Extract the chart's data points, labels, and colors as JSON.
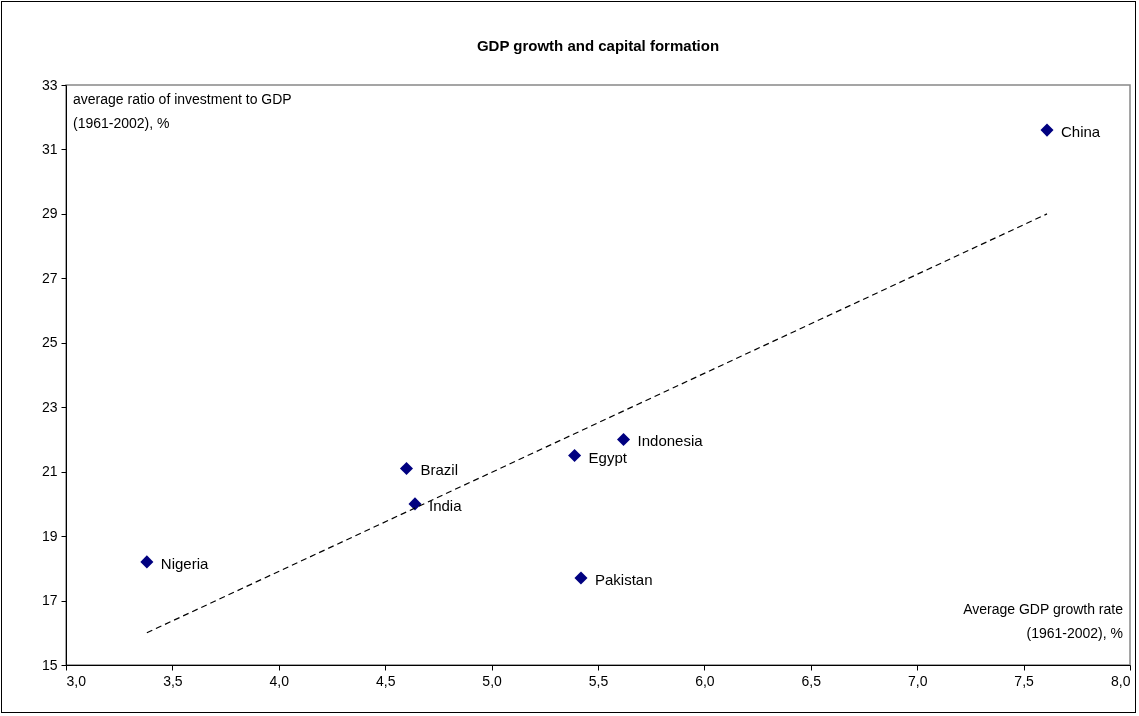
{
  "chart_data": {
    "type": "scatter",
    "title": "GDP growth and capital formation",
    "xlabel": "Average GDP growth rate\n(1961-2002), %",
    "ylabel": "average ratio of investment to GDP\n(1961-2002), %",
    "xlim": [
      3,
      8
    ],
    "xticks": [
      {
        "value": 3,
        "label": "3,0"
      },
      {
        "value": 3.5,
        "label": "3,5"
      },
      {
        "value": 4,
        "label": "4,0"
      },
      {
        "value": 4.5,
        "label": "4,5"
      },
      {
        "value": 5,
        "label": "5,0"
      },
      {
        "value": 5.5,
        "label": "5,5"
      },
      {
        "value": 6,
        "label": "6,0"
      },
      {
        "value": 6.5,
        "label": "6,5"
      },
      {
        "value": 7,
        "label": "7,0"
      },
      {
        "value": 7.5,
        "label": "7,5"
      },
      {
        "value": 8,
        "label": "8,0"
      }
    ],
    "ylim": [
      15,
      33
    ],
    "yticks": [
      15,
      17,
      19,
      21,
      23,
      25,
      27,
      29,
      31,
      33
    ],
    "grid": false,
    "series": [
      {
        "color": "#000080",
        "marker": "diamond",
        "x": [
          3.38,
          4.6,
          4.64,
          5.39,
          5.42,
          5.62,
          7.61
        ],
        "values": [
          18.2,
          21.1,
          20.0,
          21.5,
          17.7,
          22.0,
          31.6
        ]
      },
      {
        "type": "line",
        "color": "#000000",
        "line_style": "dashed",
        "marker": "none",
        "x": [
          3.38,
          7.61
        ],
        "values": [
          16.0,
          29.0
        ]
      }
    ],
    "annotations": [
      {
        "text": "Nigeria",
        "x": 3.38,
        "y": 18.2
      },
      {
        "text": "Brazil",
        "x": 4.6,
        "y": 21.1
      },
      {
        "text": "India",
        "x": 4.64,
        "y": 20.0
      },
      {
        "text": "Egypt",
        "x": 5.39,
        "y": 21.5
      },
      {
        "text": "Pakistan",
        "x": 5.42,
        "y": 17.7
      },
      {
        "text": "Indonesia",
        "x": 5.62,
        "y": 22.0
      },
      {
        "text": "China",
        "x": 7.61,
        "y": 31.6
      }
    ]
  }
}
